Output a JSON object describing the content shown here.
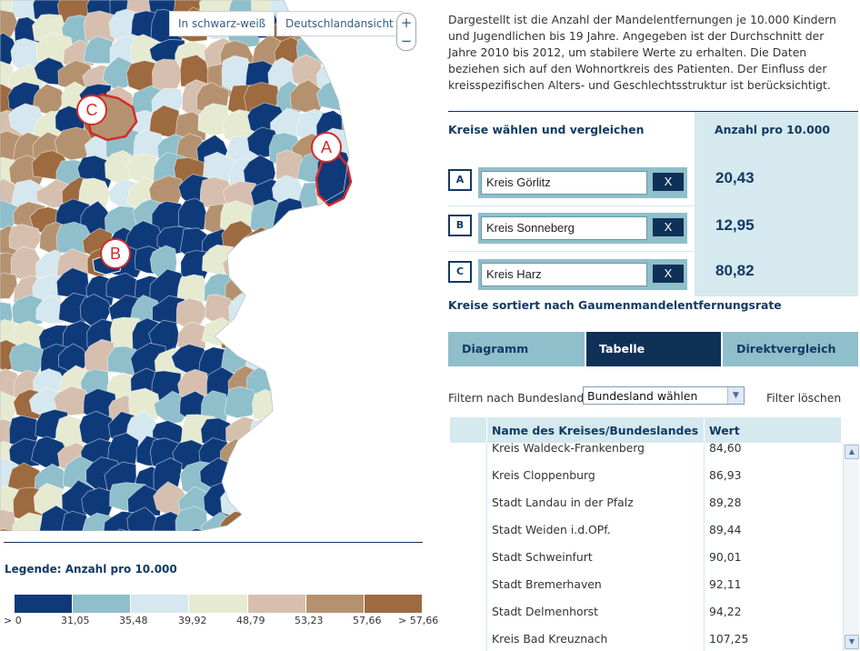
{
  "map": {
    "buttons": {
      "bw": "In schwarz-weiß",
      "de": "Deutschlandansicht"
    },
    "zoom": {
      "in": "+",
      "out": "−"
    },
    "markers": [
      "A",
      "B",
      "C"
    ],
    "colors": {
      "c1": "#0f3a7a",
      "c2": "#8fbfcb",
      "c3": "#d5e7ef",
      "c4": "#e6ead0",
      "c5": "#d6bfae",
      "c6": "#b5926f",
      "c7": "#9e6a3f",
      "highlight": "#d62a2a"
    }
  },
  "legend": {
    "title": "Legende: Anzahl pro 10.000",
    "colors": [
      "#0f3a7a",
      "#8fbfcb",
      "#d5e7ef",
      "#e6ead0",
      "#d6bfae",
      "#b5926f",
      "#9e6a3f"
    ],
    "labels": [
      "> 0",
      "31,05",
      "35,48",
      "39,92",
      "48,79",
      "53,23",
      "57,66",
      "> 57,66"
    ]
  },
  "description": "Dargestellt ist die Anzahl der Mandelentfernungen je 10.000 Kindern und Jugendlichen bis 19 Jahre. Angegeben ist der Durchschnitt der Jahre 2010 bis 2012, um stabilere Werte zu erhalten. Die Daten beziehen sich auf den Wohnortkreis des Patienten. Der Einfluss der kreisspezifischen Alters- und Geschlechtsstruktur ist berücksichtigt.",
  "compare": {
    "title": "Kreise wählen und vergleichen",
    "count_header": "Anzahl pro 10.000",
    "rows": [
      {
        "letter": "A",
        "name": "Kreis Görlitz",
        "remove": "X",
        "value": "20,43"
      },
      {
        "letter": "B",
        "name": "Kreis Sonneberg",
        "remove": "X",
        "value": "12,95"
      },
      {
        "letter": "C",
        "name": "Kreis Harz",
        "remove": "X",
        "value": "80,82"
      }
    ]
  },
  "sorted_title": "Kreise sortiert nach Gaumenmandelentfernungsrate",
  "tabs": {
    "diagramm": "Diagramm",
    "tabelle": "Tabelle",
    "direkt": "Direktvergleich"
  },
  "filter": {
    "label": "Filtern nach Bundesland:",
    "selected": "Bundesland wählen",
    "clear": "Filter löschen"
  },
  "table": {
    "headers": {
      "name": "Name des Kreises/Bundeslandes",
      "wert": "Wert"
    },
    "rows": [
      {
        "name": "Kreis Waldeck-Frankenberg",
        "wert": "84,60"
      },
      {
        "name": "Kreis Cloppenburg",
        "wert": "86,93"
      },
      {
        "name": "Stadt Landau in der Pfalz",
        "wert": "89,28"
      },
      {
        "name": "Stadt Weiden i.d.OPf.",
        "wert": "89,44"
      },
      {
        "name": "Stadt Schweinfurt",
        "wert": "90,01"
      },
      {
        "name": "Stadt Bremerhaven",
        "wert": "92,11"
      },
      {
        "name": "Stadt Delmenhorst",
        "wert": "94,22"
      },
      {
        "name": "Kreis Bad Kreuznach",
        "wert": "107,25"
      }
    ]
  }
}
